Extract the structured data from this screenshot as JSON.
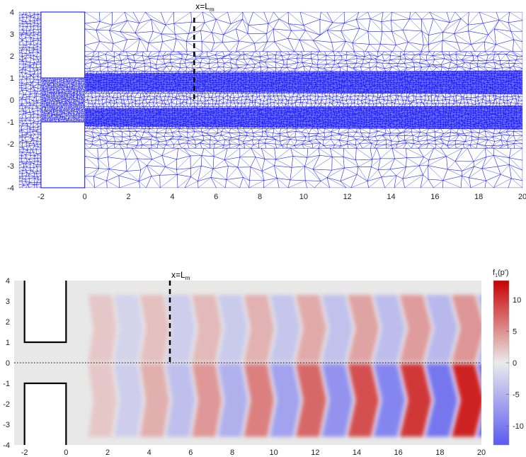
{
  "chart_data": [
    {
      "type": "mesh",
      "panel": "top",
      "xlim": [
        -3,
        20
      ],
      "ylim": [
        -4,
        4
      ],
      "xticks": [
        -2,
        0,
        2,
        4,
        6,
        8,
        10,
        12,
        14,
        16,
        18,
        20
      ],
      "yticks": [
        -4,
        -3,
        -2,
        -1,
        0,
        1,
        2,
        3,
        4
      ],
      "mesh_color": "#0000ff",
      "annotation": {
        "text": "x=L",
        "sub": "m",
        "x": 5
      },
      "obstacles": [
        {
          "x": [
            -2,
            0
          ],
          "y": [
            1,
            4
          ]
        },
        {
          "x": [
            -2,
            0
          ],
          "y": [
            -4,
            -1
          ]
        }
      ]
    },
    {
      "type": "heatmap",
      "panel": "bottom",
      "xlim": [
        -2.5,
        20
      ],
      "ylim": [
        -4,
        4
      ],
      "xticks": [
        -2,
        0,
        2,
        4,
        6,
        8,
        10,
        12,
        14,
        16,
        18,
        20
      ],
      "yticks": [
        -4,
        -3,
        -2,
        -1,
        0,
        1,
        2,
        3,
        4
      ],
      "annotation": {
        "text": "x=L",
        "sub": "m",
        "x": 5
      },
      "colorbar": {
        "label": "f",
        "label_sub": "1",
        "label_tail": "(p')",
        "range": [
          -13,
          13
        ],
        "ticks": [
          10,
          5,
          0,
          -5,
          -10
        ],
        "colormap": [
          "#5b5bf0",
          "#ebebeb",
          "#c80000"
        ]
      },
      "wave_upper": {
        "x_start": 1,
        "period": 2.5,
        "amplitude": [
          2,
          5
        ],
        "region_y": [
          0,
          4
        ]
      },
      "wave_lower": {
        "x_start": 1,
        "period": 2.5,
        "amplitude": [
          2,
          12
        ],
        "region_y": [
          -4,
          0
        ]
      },
      "obstacles": [
        {
          "x": [
            -2,
            0
          ],
          "y": [
            1,
            4
          ]
        },
        {
          "x": [
            -2,
            0
          ],
          "y": [
            -4,
            -1
          ]
        }
      ]
    }
  ]
}
